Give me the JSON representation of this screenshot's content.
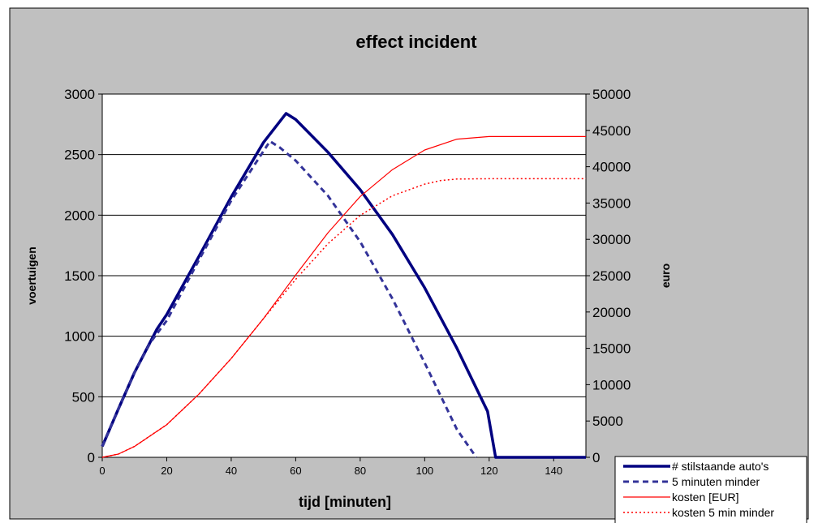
{
  "chart_data": {
    "type": "line",
    "title": "effect incident",
    "xlabel": "tijd [minuten]",
    "ylabel": "voertuigen",
    "y2label": "euro",
    "xlim": [
      0,
      150
    ],
    "ylim": [
      0,
      3000
    ],
    "y2lim": [
      0,
      50000
    ],
    "x_ticks": [
      0,
      20,
      40,
      60,
      80,
      100,
      120,
      140
    ],
    "y_ticks": [
      0,
      500,
      1000,
      1500,
      2000,
      2500,
      3000
    ],
    "y2_ticks": [
      0,
      5000,
      10000,
      15000,
      20000,
      25000,
      30000,
      35000,
      40000,
      45000,
      50000
    ],
    "grid": "horizontal",
    "legend_position": "bottom-right",
    "colors": {
      "plot_bg": "#ffffff",
      "outer_bg": "#c0c0c0",
      "blue": "#000080",
      "dash_blue": "#333399",
      "red": "#ff0000"
    },
    "series": [
      {
        "name": "# stilstaande auto's",
        "axis": "left",
        "style": "solid-thick",
        "color": "#000080",
        "x": [
          0,
          5,
          10,
          17,
          20,
          30,
          40,
          50,
          57,
          60,
          70,
          80,
          90,
          100,
          110,
          119.5,
          122,
          150
        ],
        "y": [
          90,
          400,
          700,
          1060,
          1180,
          1660,
          2150,
          2600,
          2840,
          2790,
          2520,
          2210,
          1840,
          1400,
          900,
          380,
          0,
          0
        ]
      },
      {
        "name": "5 minuten minder",
        "axis": "left",
        "style": "dashed",
        "color": "#333399",
        "x": [
          0,
          5,
          10,
          15,
          20,
          30,
          40,
          52,
          55,
          60,
          70,
          80,
          90,
          100,
          110,
          116
        ],
        "y": [
          90,
          400,
          700,
          950,
          1130,
          1630,
          2120,
          2610,
          2560,
          2450,
          2160,
          1780,
          1310,
          780,
          230,
          0
        ]
      },
      {
        "name": "kosten [EUR]",
        "axis": "right",
        "style": "solid-thin",
        "color": "#ff0000",
        "x": [
          0,
          5,
          10,
          20,
          30,
          40,
          50,
          60,
          70,
          80,
          90,
          100,
          110,
          120,
          130,
          140,
          150
        ],
        "y": [
          0,
          450,
          1500,
          4500,
          8700,
          13600,
          19100,
          25100,
          30900,
          35900,
          39600,
          42300,
          43800,
          44150,
          44150,
          44150,
          44150
        ]
      },
      {
        "name": "kosten 5 min minder",
        "axis": "right",
        "style": "dotted",
        "color": "#ff0000",
        "x": [
          0,
          5,
          10,
          20,
          30,
          40,
          50,
          60,
          70,
          80,
          90,
          100,
          105,
          110,
          120,
          130,
          140,
          150
        ],
        "y": [
          0,
          450,
          1500,
          4500,
          8700,
          13600,
          19100,
          24500,
          29400,
          33300,
          36000,
          37600,
          38100,
          38300,
          38350,
          38350,
          38350,
          38350
        ]
      }
    ]
  }
}
